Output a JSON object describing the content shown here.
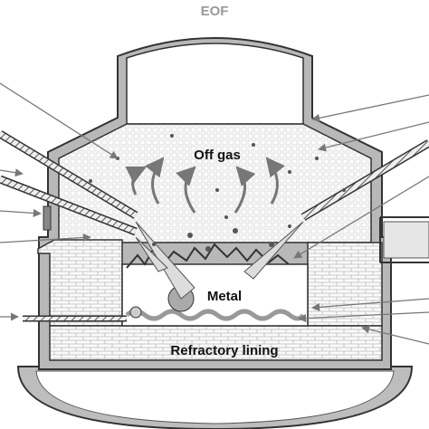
{
  "title": "EOF",
  "labels": {
    "off_gas": "Off gas",
    "metal": "Metal",
    "refractory": "Refractory lining"
  }
}
